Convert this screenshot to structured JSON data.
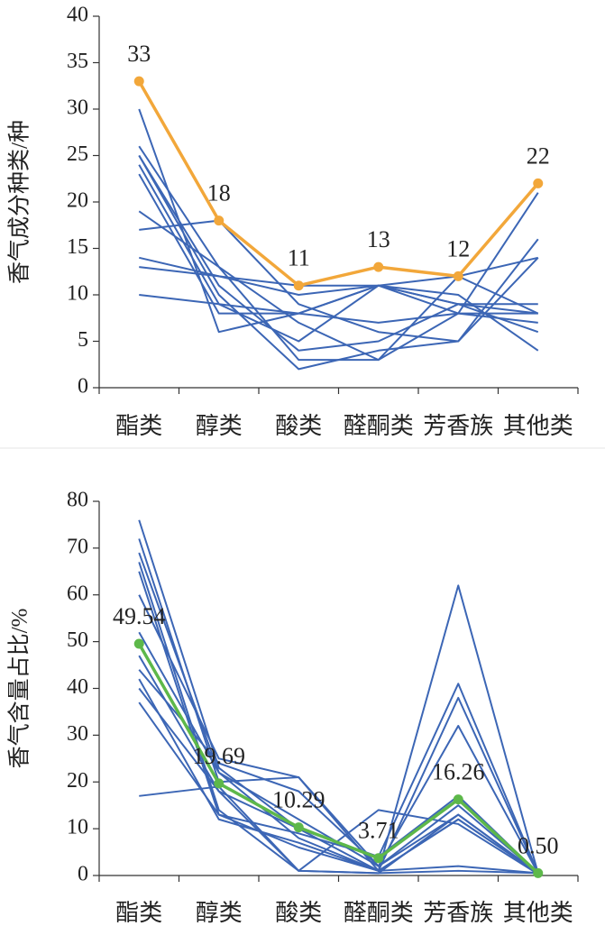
{
  "chart_data": [
    {
      "type": "line",
      "y_label": "香气成分种类/种",
      "categories": [
        "酯类",
        "醇类",
        "酸类",
        "醛酮类",
        "芳香族",
        "其他类"
      ],
      "ylim": [
        0,
        40
      ],
      "yticks": [
        0,
        5,
        10,
        15,
        20,
        25,
        30,
        35,
        40
      ],
      "series": [
        {
          "color": "#3c66b5",
          "values": [
            30,
            6,
            8,
            11,
            9,
            8
          ]
        },
        {
          "color": "#3c66b5",
          "values": [
            26,
            13,
            3,
            3,
            8,
            21
          ]
        },
        {
          "color": "#3c66b5",
          "values": [
            25,
            10,
            2,
            4,
            5,
            16
          ]
        },
        {
          "color": "#3c66b5",
          "values": [
            24,
            9,
            5,
            11,
            9,
            9
          ]
        },
        {
          "color": "#3c66b5",
          "values": [
            23,
            8,
            8,
            11,
            8,
            7
          ]
        },
        {
          "color": "#3c66b5",
          "values": [
            19,
            13,
            7,
            3,
            12,
            14
          ]
        },
        {
          "color": "#3c66b5",
          "values": [
            17,
            18,
            9,
            6,
            5,
            14
          ]
        },
        {
          "color": "#3c66b5",
          "values": [
            14,
            12,
            10,
            11,
            12,
            8
          ]
        },
        {
          "color": "#3c66b5",
          "values": [
            13,
            12,
            11,
            11,
            10,
            4
          ]
        },
        {
          "color": "#3c66b5",
          "values": [
            10,
            9,
            8,
            7,
            8,
            8
          ]
        },
        {
          "color": "#3c66b5",
          "values": [
            25,
            11,
            4,
            5,
            9,
            6
          ]
        },
        {
          "color": "#f2a73a",
          "markers": true,
          "labels": true,
          "values": [
            33,
            18,
            11,
            13,
            12,
            22
          ]
        }
      ]
    },
    {
      "type": "line",
      "y_label": "香气含量占比/%",
      "categories": [
        "酯类",
        "醇类",
        "酸类",
        "醛酮类",
        "芳香族",
        "其他类"
      ],
      "ylim": [
        0,
        80
      ],
      "yticks": [
        0,
        10,
        20,
        30,
        40,
        50,
        60,
        70,
        80
      ],
      "series": [
        {
          "color": "#3c66b5",
          "values": [
            76,
            23,
            10,
            1,
            12,
            0.5
          ]
        },
        {
          "color": "#3c66b5",
          "values": [
            72,
            20,
            21,
            2,
            13,
            0.5
          ]
        },
        {
          "color": "#3c66b5",
          "values": [
            69,
            22,
            8,
            1,
            62,
            0.5
          ]
        },
        {
          "color": "#3c66b5",
          "values": [
            67,
            14,
            1,
            14,
            11,
            0.3
          ]
        },
        {
          "color": "#3c66b5",
          "values": [
            65,
            13,
            9,
            4,
            41,
            0.5
          ]
        },
        {
          "color": "#3c66b5",
          "values": [
            60,
            25,
            21,
            1,
            38,
            0.5
          ]
        },
        {
          "color": "#3c66b5",
          "values": [
            52,
            22,
            12,
            2,
            32,
            0.5
          ]
        },
        {
          "color": "#3c66b5",
          "values": [
            47,
            18,
            10,
            4,
            17,
            0.5
          ]
        },
        {
          "color": "#3c66b5",
          "values": [
            44,
            24,
            18,
            2,
            15,
            0.5
          ]
        },
        {
          "color": "#3c66b5",
          "values": [
            42,
            12,
            7,
            1,
            12,
            0.5
          ]
        },
        {
          "color": "#3c66b5",
          "values": [
            40,
            18,
            1,
            0.5,
            13,
            0.5
          ]
        },
        {
          "color": "#3c66b5",
          "values": [
            37,
            13,
            6,
            1,
            2,
            0.5
          ]
        },
        {
          "color": "#3c66b5",
          "values": [
            17,
            19,
            1,
            0.5,
            1,
            0.5
          ]
        },
        {
          "color": "#5db84a",
          "markers": true,
          "labels": true,
          "values": [
            49.54,
            19.69,
            10.29,
            3.71,
            16.26,
            0.5
          ],
          "value_labels": [
            "49.54",
            "19.69",
            "10.29",
            "3.71",
            "16.26",
            "0.50"
          ]
        }
      ]
    }
  ]
}
